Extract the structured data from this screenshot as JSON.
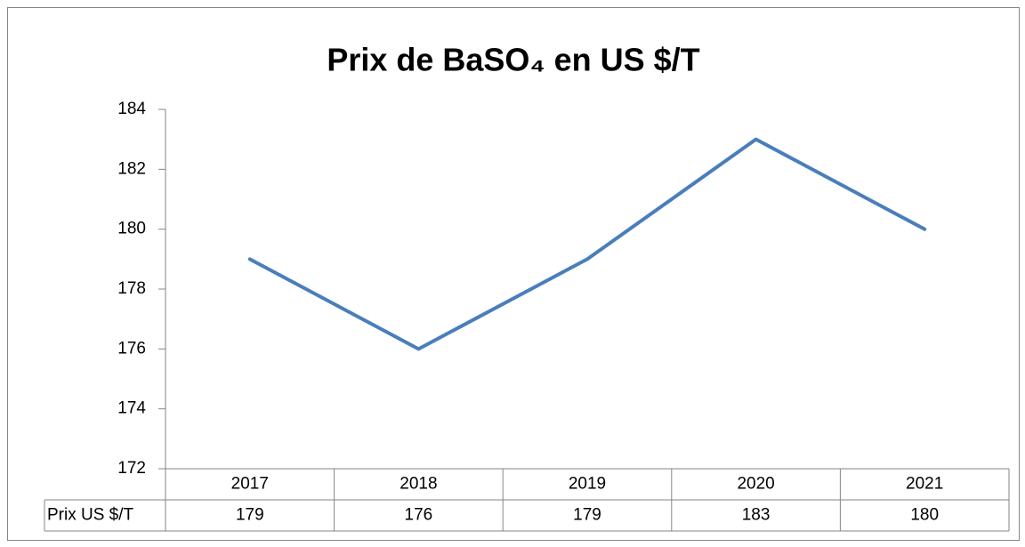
{
  "chart_data": {
    "type": "line",
    "title": "Prix de BaSO₄ en US $/T",
    "categories": [
      "2017",
      "2018",
      "2019",
      "2020",
      "2021"
    ],
    "series": [
      {
        "name": "Prix US $/T",
        "color": "#4a7ebb",
        "values": [
          179,
          176,
          179,
          183,
          180
        ]
      }
    ],
    "ylim": [
      172,
      184
    ],
    "yticks": [
      172,
      174,
      176,
      178,
      180,
      182,
      184
    ],
    "grid": false,
    "data_table": true
  }
}
